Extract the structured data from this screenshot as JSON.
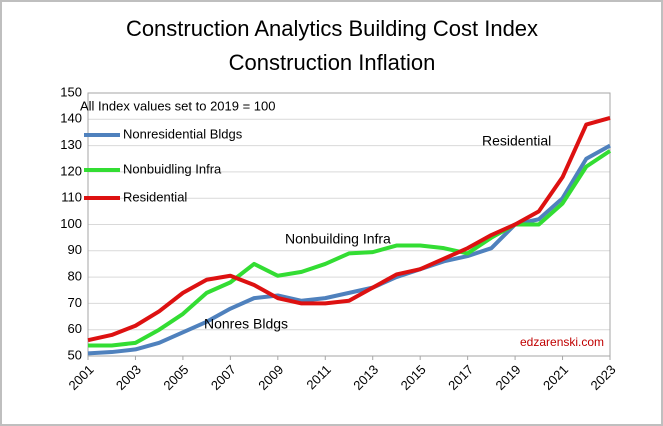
{
  "chart_data": {
    "type": "line",
    "title": [
      "Construction Analytics Building Cost Index",
      "Construction Inflation"
    ],
    "note": "All Index values set to 2019 = 100",
    "annotations": [
      "Residential",
      "Nonbuilding Infra",
      "Nonres Bldgs"
    ],
    "source": "edzarenski.com",
    "x": [
      2001,
      2002,
      2003,
      2004,
      2005,
      2006,
      2007,
      2008,
      2009,
      2010,
      2011,
      2012,
      2013,
      2014,
      2015,
      2016,
      2017,
      2018,
      2019,
      2020,
      2021,
      2022,
      2023
    ],
    "series": [
      {
        "name": "Nonresidential Bldgs",
        "color": "#4f81bd",
        "values": [
          51,
          51.5,
          52.5,
          55,
          59,
          63,
          68,
          72,
          73,
          71,
          72,
          74,
          76,
          80,
          83,
          86,
          88,
          91,
          100,
          102,
          110,
          125,
          130
        ]
      },
      {
        "name": "Nonbuidling Infra",
        "color": "#33dd33",
        "values": [
          54,
          54,
          55,
          60,
          66,
          74,
          78,
          85,
          80.5,
          82,
          85,
          89,
          89.5,
          92,
          92,
          91,
          89,
          95,
          100,
          100,
          108,
          122,
          128
        ]
      },
      {
        "name": "Residential",
        "color": "#dd1111",
        "values": [
          56,
          58,
          61.5,
          67,
          74,
          79,
          80.5,
          77,
          72,
          70,
          70,
          71,
          76,
          81,
          83,
          87,
          91,
          96,
          100,
          105,
          118,
          138,
          140.5
        ]
      }
    ],
    "xlim": [
      2001,
      2023
    ],
    "xticks": [
      2001,
      2003,
      2005,
      2007,
      2009,
      2011,
      2013,
      2015,
      2017,
      2019,
      2021,
      2023
    ],
    "ylim": [
      50,
      150
    ],
    "yticks": [
      50,
      60,
      70,
      80,
      90,
      100,
      110,
      120,
      130,
      140,
      150
    ],
    "grid": true,
    "legend": "upper left"
  }
}
